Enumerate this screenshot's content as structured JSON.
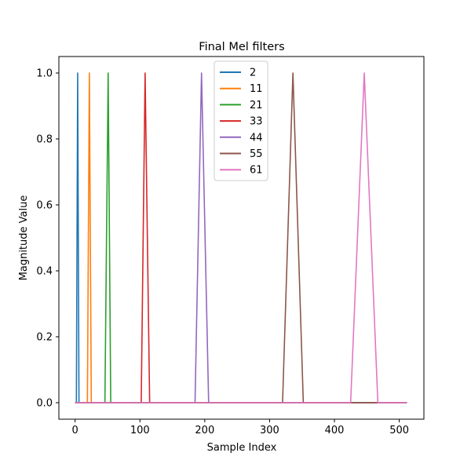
{
  "chart_data": {
    "type": "line",
    "title": "Final Mel filters",
    "xlabel": "Sample Index",
    "ylabel": "Magnitude Value",
    "xlim": [
      -25,
      538
    ],
    "ylim": [
      -0.05,
      1.05
    ],
    "xticks": [
      0,
      100,
      200,
      300,
      400,
      500
    ],
    "yticks": [
      0.0,
      0.2,
      0.4,
      0.6,
      0.8,
      1.0
    ],
    "xtick_labels": [
      "0",
      "100",
      "200",
      "300",
      "400",
      "500"
    ],
    "ytick_labels": [
      "0.0",
      "0.2",
      "0.4",
      "0.6",
      "0.8",
      "1.0"
    ],
    "grid": false,
    "legend_position": "top-center",
    "x_domain": [
      0,
      512
    ],
    "series": [
      {
        "name": "2",
        "color": "#1f77b4",
        "x": [
          0,
          2,
          4,
          6,
          512
        ],
        "y": [
          0,
          0,
          1,
          0,
          0
        ]
      },
      {
        "name": "11",
        "color": "#ff7f0e",
        "x": [
          0,
          19,
          22,
          25,
          512
        ],
        "y": [
          0,
          0,
          1,
          0,
          0
        ]
      },
      {
        "name": "21",
        "color": "#2ca02c",
        "x": [
          0,
          46,
          51,
          55,
          512
        ],
        "y": [
          0,
          0,
          1,
          0,
          0
        ]
      },
      {
        "name": "33",
        "color": "#d62728",
        "x": [
          0,
          102,
          108,
          115,
          512
        ],
        "y": [
          0,
          0,
          1,
          0,
          0
        ]
      },
      {
        "name": "44",
        "color": "#9467bd",
        "x": [
          0,
          185,
          195,
          206,
          512
        ],
        "y": [
          0,
          0,
          1,
          0,
          0
        ]
      },
      {
        "name": "55",
        "color": "#8c564b",
        "x": [
          0,
          320,
          336,
          352,
          512
        ],
        "y": [
          0,
          0,
          1,
          0,
          0
        ]
      },
      {
        "name": "61",
        "color": "#e377c2",
        "x": [
          0,
          425,
          446,
          467,
          512
        ],
        "y": [
          0,
          0,
          1,
          0,
          0
        ]
      }
    ]
  }
}
